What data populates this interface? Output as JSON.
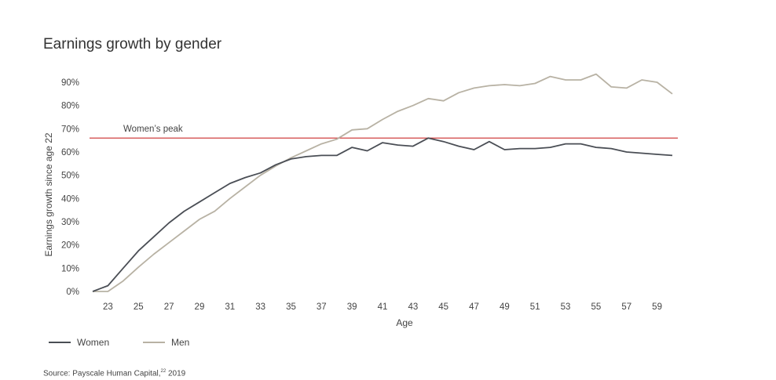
{
  "title": "Earnings growth by gender",
  "source": {
    "text": "Source: Payscale Human Capital,",
    "sup": "22",
    "year": " 2019"
  },
  "colors": {
    "women": "#4a4e55",
    "men": "#b8b2a4",
    "peak": "#cc2b2b"
  },
  "chart_data": {
    "type": "line",
    "title": "Earnings growth by gender",
    "xlabel": "Age",
    "ylabel": "Earnings growth since age 22",
    "xlim": [
      22,
      60
    ],
    "ylim": [
      0,
      90
    ],
    "x_ticks": [
      23,
      25,
      27,
      29,
      31,
      33,
      35,
      37,
      39,
      41,
      43,
      45,
      47,
      49,
      51,
      53,
      55,
      57,
      59
    ],
    "y_ticks": [
      0,
      10,
      20,
      30,
      40,
      50,
      60,
      70,
      80,
      90
    ],
    "y_tick_labels": [
      "0%",
      "10%",
      "20%",
      "30%",
      "40%",
      "50%",
      "60%",
      "70%",
      "80%",
      "90%"
    ],
    "x": [
      22,
      23,
      24,
      25,
      26,
      27,
      28,
      29,
      30,
      31,
      32,
      33,
      34,
      35,
      36,
      37,
      38,
      39,
      40,
      41,
      42,
      43,
      44,
      45,
      46,
      47,
      48,
      49,
      50,
      51,
      52,
      53,
      54,
      55,
      56,
      57,
      58,
      59,
      60
    ],
    "series": [
      {
        "name": "Women",
        "color": "#4a4e55",
        "values": [
          0,
          2.5,
          10,
          17.5,
          23.5,
          29.5,
          34.5,
          38.5,
          42.5,
          46.5,
          49,
          51,
          54.5,
          57,
          58,
          58.5,
          58.5,
          62,
          60.5,
          64,
          63,
          62.5,
          66,
          64.5,
          62.5,
          61,
          64.5,
          61,
          61.5,
          61.5,
          62,
          63.5,
          63.5,
          62,
          61.5,
          60,
          59.5,
          59,
          58.5
        ]
      },
      {
        "name": "Men",
        "color": "#b8b2a4",
        "values": [
          0,
          0,
          4.5,
          10.5,
          16,
          21,
          26,
          31,
          34.5,
          40,
          45,
          50,
          54,
          57.5,
          60.5,
          63.5,
          65.5,
          69.5,
          70,
          74,
          77.5,
          80,
          83,
          82,
          85.5,
          87.5,
          88.5,
          89,
          88.5,
          89.5,
          92.5,
          91,
          91,
          93.5,
          88,
          87.5,
          91,
          90,
          85
        ]
      }
    ],
    "reference_line": {
      "label": "Women’s peak",
      "value": 66
    },
    "legend": {
      "placement": "bottom-left",
      "entries": [
        "Women",
        "Men"
      ]
    },
    "grid": false
  }
}
